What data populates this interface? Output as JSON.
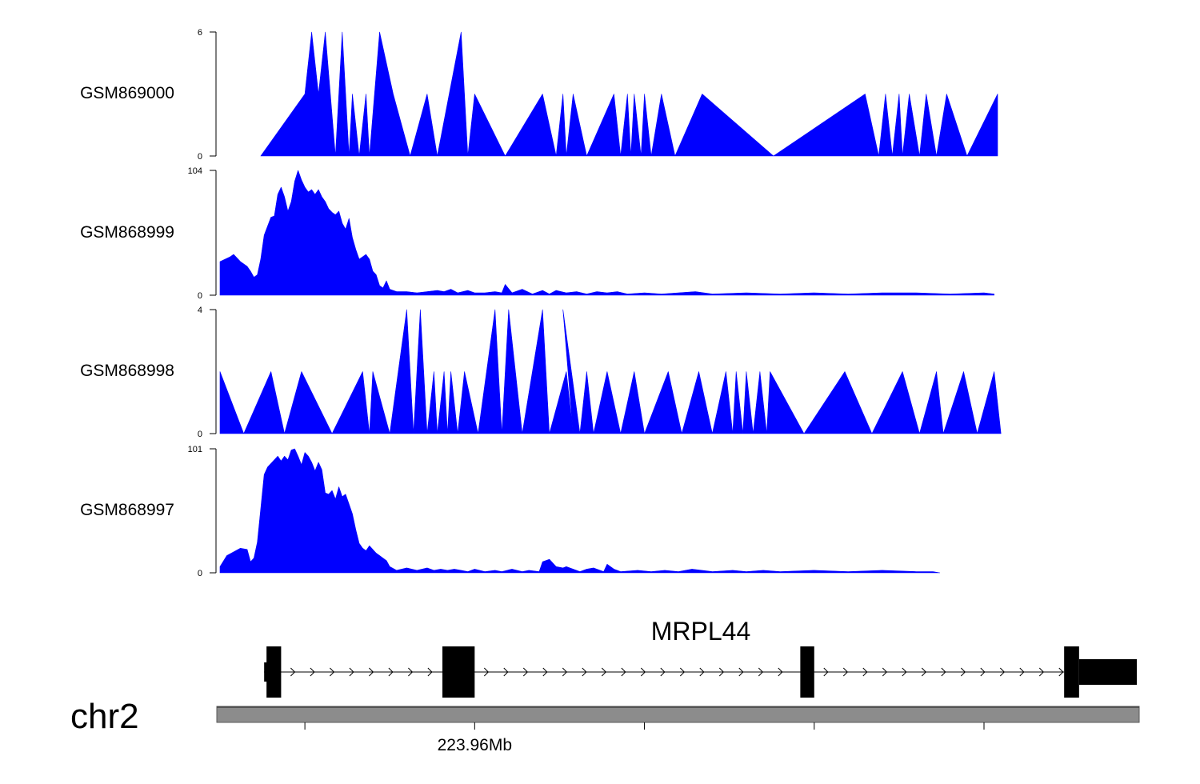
{
  "chart_data": {
    "type": "area",
    "title": "",
    "color": "#0000ff",
    "genomic_range_mb": [
      223.9525,
      223.9795
    ],
    "chromosome": "chr2",
    "axis_tick_mb": [
      223.955,
      223.96,
      223.965,
      223.97,
      223.975
    ],
    "axis_tick_labels": [
      {
        "mb": 223.96,
        "text": "223.96Mb"
      }
    ],
    "tracks": [
      {
        "name": "GSM869000",
        "ylim": [
          0,
          6
        ],
        "tick_labels": [
          "0",
          "6"
        ],
        "points": [
          [
            223.9537,
            0
          ],
          [
            223.955,
            3
          ],
          [
            223.9552,
            6
          ],
          [
            223.9554,
            3
          ],
          [
            223.9556,
            6
          ],
          [
            223.9559,
            0
          ],
          [
            223.9561,
            6
          ],
          [
            223.9563,
            0
          ],
          [
            223.9564,
            3
          ],
          [
            223.9566,
            0
          ],
          [
            223.9568,
            3
          ],
          [
            223.9569,
            0
          ],
          [
            223.9572,
            6
          ],
          [
            223.9576,
            3
          ],
          [
            223.9581,
            0
          ],
          [
            223.9586,
            3
          ],
          [
            223.9589,
            0
          ],
          [
            223.9596,
            6
          ],
          [
            223.9598,
            0
          ],
          [
            223.96,
            3
          ],
          [
            223.9609,
            0
          ],
          [
            223.962,
            3
          ],
          [
            223.9624,
            0
          ],
          [
            223.9626,
            3
          ],
          [
            223.9627,
            0
          ],
          [
            223.9629,
            3
          ],
          [
            223.9633,
            0
          ],
          [
            223.9641,
            3
          ],
          [
            223.9643,
            0
          ],
          [
            223.9645,
            3
          ],
          [
            223.9646,
            0
          ],
          [
            223.9647,
            3
          ],
          [
            223.9649,
            0
          ],
          [
            223.965,
            3
          ],
          [
            223.9652,
            0
          ],
          [
            223.9655,
            3
          ],
          [
            223.9659,
            0
          ],
          [
            223.9667,
            3
          ],
          [
            223.9688,
            0
          ],
          [
            223.9715,
            3
          ],
          [
            223.9719,
            0
          ],
          [
            223.9721,
            3
          ],
          [
            223.9723,
            0
          ],
          [
            223.9725,
            3
          ],
          [
            223.9726,
            0
          ],
          [
            223.9728,
            3
          ],
          [
            223.9731,
            0
          ],
          [
            223.9733,
            3
          ],
          [
            223.9736,
            0
          ],
          [
            223.9739,
            3
          ],
          [
            223.9745,
            0
          ],
          [
            223.9754,
            3
          ]
        ]
      },
      {
        "name": "GSM868999",
        "ylim": [
          0,
          104
        ],
        "tick_labels": [
          "0",
          "104"
        ],
        "points": [
          [
            223.9525,
            28
          ],
          [
            223.9528,
            32
          ],
          [
            223.9529,
            34
          ],
          [
            223.9531,
            28
          ],
          [
            223.9533,
            24
          ],
          [
            223.9534,
            20
          ],
          [
            223.9535,
            15
          ],
          [
            223.9536,
            17
          ],
          [
            223.9537,
            30
          ],
          [
            223.9538,
            50
          ],
          [
            223.954,
            65
          ],
          [
            223.9541,
            66
          ],
          [
            223.9542,
            84
          ],
          [
            223.9543,
            90
          ],
          [
            223.9544,
            82
          ],
          [
            223.9545,
            70
          ],
          [
            223.9546,
            78
          ],
          [
            223.9547,
            95
          ],
          [
            223.9548,
            104
          ],
          [
            223.9549,
            96
          ],
          [
            223.955,
            90
          ],
          [
            223.9551,
            86
          ],
          [
            223.9552,
            88
          ],
          [
            223.9553,
            84
          ],
          [
            223.9554,
            88
          ],
          [
            223.9555,
            82
          ],
          [
            223.9556,
            78
          ],
          [
            223.9557,
            72
          ],
          [
            223.9558,
            69
          ],
          [
            223.9559,
            67
          ],
          [
            223.956,
            70
          ],
          [
            223.9561,
            60
          ],
          [
            223.9562,
            55
          ],
          [
            223.9563,
            64
          ],
          [
            223.9564,
            48
          ],
          [
            223.9565,
            38
          ],
          [
            223.9566,
            30
          ],
          [
            223.9567,
            32
          ],
          [
            223.9568,
            34
          ],
          [
            223.9569,
            30
          ],
          [
            223.957,
            20
          ],
          [
            223.9571,
            17
          ],
          [
            223.9572,
            8
          ],
          [
            223.9573,
            6
          ],
          [
            223.9574,
            12
          ],
          [
            223.9575,
            5
          ],
          [
            223.9577,
            3
          ],
          [
            223.958,
            3
          ],
          [
            223.9583,
            2
          ],
          [
            223.9586,
            3
          ],
          [
            223.9589,
            4
          ],
          [
            223.9591,
            3
          ],
          [
            223.9593,
            5
          ],
          [
            223.9595,
            2
          ],
          [
            223.9598,
            4
          ],
          [
            223.96,
            2
          ],
          [
            223.9603,
            2
          ],
          [
            223.9606,
            3
          ],
          [
            223.9608,
            2
          ],
          [
            223.9609,
            9
          ],
          [
            223.9611,
            2
          ],
          [
            223.9614,
            5
          ],
          [
            223.9617,
            1
          ],
          [
            223.962,
            4
          ],
          [
            223.9622,
            1
          ],
          [
            223.9624,
            4
          ],
          [
            223.9627,
            2
          ],
          [
            223.963,
            3
          ],
          [
            223.9633,
            1
          ],
          [
            223.9636,
            3
          ],
          [
            223.9639,
            2
          ],
          [
            223.9642,
            3
          ],
          [
            223.9645,
            1
          ],
          [
            223.965,
            2
          ],
          [
            223.9655,
            1
          ],
          [
            223.966,
            2
          ],
          [
            223.9665,
            3
          ],
          [
            223.967,
            1
          ],
          [
            223.968,
            2
          ],
          [
            223.969,
            1
          ],
          [
            223.97,
            2
          ],
          [
            223.971,
            1
          ],
          [
            223.972,
            2
          ],
          [
            223.973,
            2
          ],
          [
            223.974,
            1
          ],
          [
            223.975,
            2
          ],
          [
            223.9753,
            1
          ]
        ]
      },
      {
        "name": "GSM868998",
        "ylim": [
          0,
          4
        ],
        "tick_labels": [
          "0",
          "4"
        ],
        "points": [
          [
            223.9525,
            2
          ],
          [
            223.9532,
            0
          ],
          [
            223.954,
            2
          ],
          [
            223.9544,
            0
          ],
          [
            223.9549,
            2
          ],
          [
            223.9558,
            0
          ],
          [
            223.9567,
            2
          ],
          [
            223.9569,
            0
          ],
          [
            223.957,
            2
          ],
          [
            223.9575,
            0
          ],
          [
            223.958,
            4
          ],
          [
            223.9582,
            0
          ],
          [
            223.9584,
            4
          ],
          [
            223.9586,
            0
          ],
          [
            223.9588,
            2
          ],
          [
            223.9589,
            0
          ],
          [
            223.9591,
            2
          ],
          [
            223.9592,
            0
          ],
          [
            223.9593,
            2
          ],
          [
            223.9595,
            0
          ],
          [
            223.9597,
            2
          ],
          [
            223.9601,
            0
          ],
          [
            223.9606,
            4
          ],
          [
            223.9608,
            0
          ],
          [
            223.961,
            4
          ],
          [
            223.9614,
            0
          ],
          [
            223.962,
            4
          ],
          [
            223.9622,
            0
          ],
          [
            223.9627,
            2
          ],
          [
            223.9629,
            0
          ],
          [
            223.9626,
            4
          ],
          [
            223.9631,
            0
          ],
          [
            223.9633,
            2
          ],
          [
            223.9635,
            0
          ],
          [
            223.9639,
            2
          ],
          [
            223.9643,
            0
          ],
          [
            223.9647,
            2
          ],
          [
            223.965,
            0
          ],
          [
            223.9657,
            2
          ],
          [
            223.9661,
            0
          ],
          [
            223.9666,
            2
          ],
          [
            223.967,
            0
          ],
          [
            223.9674,
            2
          ],
          [
            223.9676,
            0
          ],
          [
            223.9677,
            2
          ],
          [
            223.9679,
            0
          ],
          [
            223.968,
            2
          ],
          [
            223.9682,
            0
          ],
          [
            223.9684,
            2
          ],
          [
            223.9686,
            0
          ],
          [
            223.9687,
            2
          ],
          [
            223.9697,
            0
          ],
          [
            223.9709,
            2
          ],
          [
            223.9717,
            0
          ],
          [
            223.9726,
            2
          ],
          [
            223.9731,
            0
          ],
          [
            223.9736,
            2
          ],
          [
            223.9738,
            0
          ],
          [
            223.9744,
            2
          ],
          [
            223.9748,
            0
          ],
          [
            223.9753,
            2
          ],
          [
            223.9755,
            0
          ]
        ]
      },
      {
        "name": "GSM868997",
        "ylim": [
          0,
          101
        ],
        "tick_labels": [
          "0",
          "101"
        ],
        "points": [
          [
            223.9525,
            5
          ],
          [
            223.9527,
            14
          ],
          [
            223.9529,
            17
          ],
          [
            223.9531,
            20
          ],
          [
            223.9533,
            19
          ],
          [
            223.9534,
            9
          ],
          [
            223.9535,
            12
          ],
          [
            223.9536,
            25
          ],
          [
            223.9537,
            52
          ],
          [
            223.9538,
            80
          ],
          [
            223.9539,
            86
          ],
          [
            223.9541,
            92
          ],
          [
            223.9542,
            95
          ],
          [
            223.9543,
            91
          ],
          [
            223.9544,
            95
          ],
          [
            223.9545,
            92
          ],
          [
            223.9546,
            100
          ],
          [
            223.9547,
            101
          ],
          [
            223.9548,
            95
          ],
          [
            223.9549,
            88
          ],
          [
            223.955,
            98
          ],
          [
            223.9551,
            95
          ],
          [
            223.9552,
            90
          ],
          [
            223.9553,
            83
          ],
          [
            223.9554,
            90
          ],
          [
            223.9555,
            84
          ],
          [
            223.9556,
            65
          ],
          [
            223.9557,
            64
          ],
          [
            223.9558,
            67
          ],
          [
            223.9559,
            60
          ],
          [
            223.956,
            70
          ],
          [
            223.9561,
            62
          ],
          [
            223.9562,
            64
          ],
          [
            223.9563,
            56
          ],
          [
            223.9564,
            48
          ],
          [
            223.9565,
            35
          ],
          [
            223.9566,
            24
          ],
          [
            223.9567,
            20
          ],
          [
            223.9568,
            18
          ],
          [
            223.9569,
            22
          ],
          [
            223.957,
            19
          ],
          [
            223.9571,
            16
          ],
          [
            223.9572,
            14
          ],
          [
            223.9573,
            12
          ],
          [
            223.9574,
            10
          ],
          [
            223.9575,
            5
          ],
          [
            223.9577,
            2
          ],
          [
            223.958,
            4
          ],
          [
            223.9583,
            2
          ],
          [
            223.9586,
            4
          ],
          [
            223.9588,
            2
          ],
          [
            223.959,
            3
          ],
          [
            223.9592,
            2
          ],
          [
            223.9594,
            3
          ],
          [
            223.9596,
            2
          ],
          [
            223.9598,
            1
          ],
          [
            223.96,
            3
          ],
          [
            223.9603,
            1
          ],
          [
            223.9606,
            2
          ],
          [
            223.9608,
            1
          ],
          [
            223.9611,
            3
          ],
          [
            223.9614,
            1
          ],
          [
            223.9616,
            2
          ],
          [
            223.9619,
            1
          ],
          [
            223.962,
            9
          ],
          [
            223.9622,
            11
          ],
          [
            223.9624,
            5
          ],
          [
            223.9626,
            4
          ],
          [
            223.9627,
            5
          ],
          [
            223.9629,
            3
          ],
          [
            223.9631,
            1
          ],
          [
            223.9633,
            3
          ],
          [
            223.9635,
            4
          ],
          [
            223.9638,
            1
          ],
          [
            223.9639,
            7
          ],
          [
            223.9641,
            3
          ],
          [
            223.9643,
            1
          ],
          [
            223.9648,
            2
          ],
          [
            223.9652,
            1
          ],
          [
            223.9656,
            2
          ],
          [
            223.966,
            1
          ],
          [
            223.9664,
            3
          ],
          [
            223.967,
            1
          ],
          [
            223.9676,
            2
          ],
          [
            223.968,
            1
          ],
          [
            223.9685,
            2
          ],
          [
            223.969,
            1
          ],
          [
            223.97,
            2
          ],
          [
            223.971,
            1
          ],
          [
            223.972,
            2
          ],
          [
            223.973,
            1
          ],
          [
            223.9735,
            1
          ],
          [
            223.9737,
            0
          ]
        ]
      }
    ],
    "gene": {
      "name": "MRPL44",
      "strand": "+",
      "exons": [
        {
          "start": 223.95387,
          "end": 223.9543,
          "kind": "coding"
        },
        {
          "start": 223.95905,
          "end": 223.96,
          "kind": "coding"
        },
        {
          "start": 223.96959,
          "end": 223.97,
          "kind": "coding"
        },
        {
          "start": 223.97736,
          "end": 223.9778,
          "kind": "coding"
        },
        {
          "start": 223.9778,
          "end": 223.9795,
          "kind": "utr"
        }
      ],
      "cap": {
        "start": 223.9538,
        "end": 223.9539
      }
    }
  }
}
